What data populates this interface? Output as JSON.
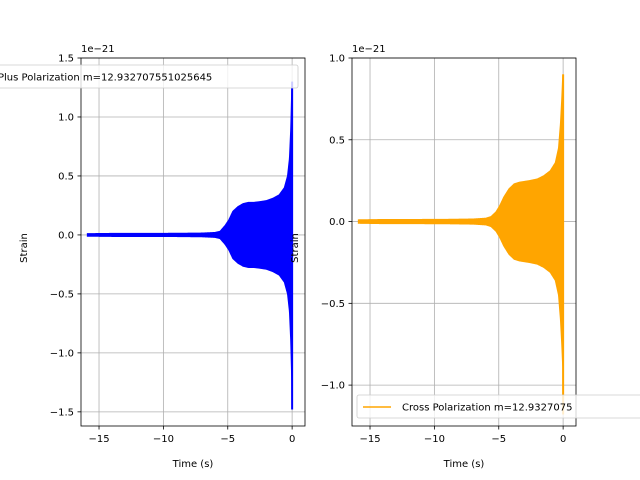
{
  "chart_data": [
    {
      "type": "line",
      "xlabel": "Time (s)",
      "ylabel": "Strain",
      "offset_text": "1e−21",
      "xlim": [
        -16.4,
        1.0
      ],
      "ylim": [
        -1.62,
        1.5
      ],
      "xticks": [
        -15,
        -10,
        -5,
        0
      ],
      "xtick_labels": [
        "−15",
        "−10",
        "−5",
        "0"
      ],
      "yticks": [
        -1.5,
        -1.0,
        -0.5,
        0.0,
        0.5,
        1.0,
        1.5
      ],
      "ytick_labels": [
        "−1.5",
        "−1.0",
        "−0.5",
        "0.0",
        "0.5",
        "1.0",
        "1.5"
      ],
      "grid": true,
      "legend_position": "upper-left",
      "series": [
        {
          "name": "Plus Polarization m=12.932707551025645",
          "color": "#0000ff",
          "x_range": [
            -15.9,
            0.0
          ],
          "envelope": [
            [
              -15.9,
              0.01
            ],
            [
              -14.0,
              0.012
            ],
            [
              -12.0,
              0.012
            ],
            [
              -9.0,
              0.013
            ],
            [
              -7.0,
              0.015
            ],
            [
              -6.0,
              0.02
            ],
            [
              -5.6,
              0.03
            ],
            [
              -5.2,
              0.08
            ],
            [
              -4.9,
              0.13
            ],
            [
              -4.6,
              0.2
            ],
            [
              -4.2,
              0.24
            ],
            [
              -3.8,
              0.265
            ],
            [
              -3.4,
              0.275
            ],
            [
              -3.0,
              0.275
            ],
            [
              -2.6,
              0.28
            ],
            [
              -2.0,
              0.29
            ],
            [
              -1.5,
              0.31
            ],
            [
              -1.0,
              0.34
            ],
            [
              -0.6,
              0.4
            ],
            [
              -0.35,
              0.5
            ],
            [
              -0.2,
              0.65
            ],
            [
              -0.1,
              0.9
            ],
            [
              -0.03,
              1.2
            ],
            [
              0.0,
              1.3
            ]
          ],
          "min_value": -1.48
        }
      ]
    },
    {
      "type": "line",
      "xlabel": "Time (s)",
      "ylabel": "Strain",
      "offset_text": "1e−21",
      "xlim": [
        -16.4,
        1.0
      ],
      "ylim": [
        -1.25,
        1.0
      ],
      "xticks": [
        -15,
        -10,
        -5,
        0
      ],
      "xtick_labels": [
        "−15",
        "−10",
        "−5",
        "0"
      ],
      "yticks": [
        -1.0,
        -0.5,
        0.0,
        0.5,
        1.0
      ],
      "ytick_labels": [
        "−1.0",
        "−0.5",
        "0.0",
        "0.5",
        "1.0"
      ],
      "grid": true,
      "legend_position": "lower-left",
      "series": [
        {
          "name": "Cross Polarization m=12.9327075",
          "color": "#ffa500",
          "x_range": [
            -15.9,
            0.0
          ],
          "envelope": [
            [
              -15.9,
              0.01
            ],
            [
              -14.0,
              0.012
            ],
            [
              -12.0,
              0.012
            ],
            [
              -9.0,
              0.013
            ],
            [
              -7.0,
              0.015
            ],
            [
              -6.0,
              0.02
            ],
            [
              -5.6,
              0.03
            ],
            [
              -5.2,
              0.06
            ],
            [
              -4.9,
              0.1
            ],
            [
              -4.6,
              0.15
            ],
            [
              -4.2,
              0.2
            ],
            [
              -3.8,
              0.23
            ],
            [
              -3.4,
              0.24
            ],
            [
              -3.0,
              0.245
            ],
            [
              -2.6,
              0.25
            ],
            [
              -2.0,
              0.26
            ],
            [
              -1.5,
              0.28
            ],
            [
              -1.0,
              0.31
            ],
            [
              -0.6,
              0.36
            ],
            [
              -0.35,
              0.45
            ],
            [
              -0.2,
              0.6
            ],
            [
              -0.1,
              0.75
            ],
            [
              -0.03,
              0.88
            ],
            [
              0.0,
              0.9
            ]
          ],
          "min_value": -1.18
        }
      ]
    }
  ]
}
